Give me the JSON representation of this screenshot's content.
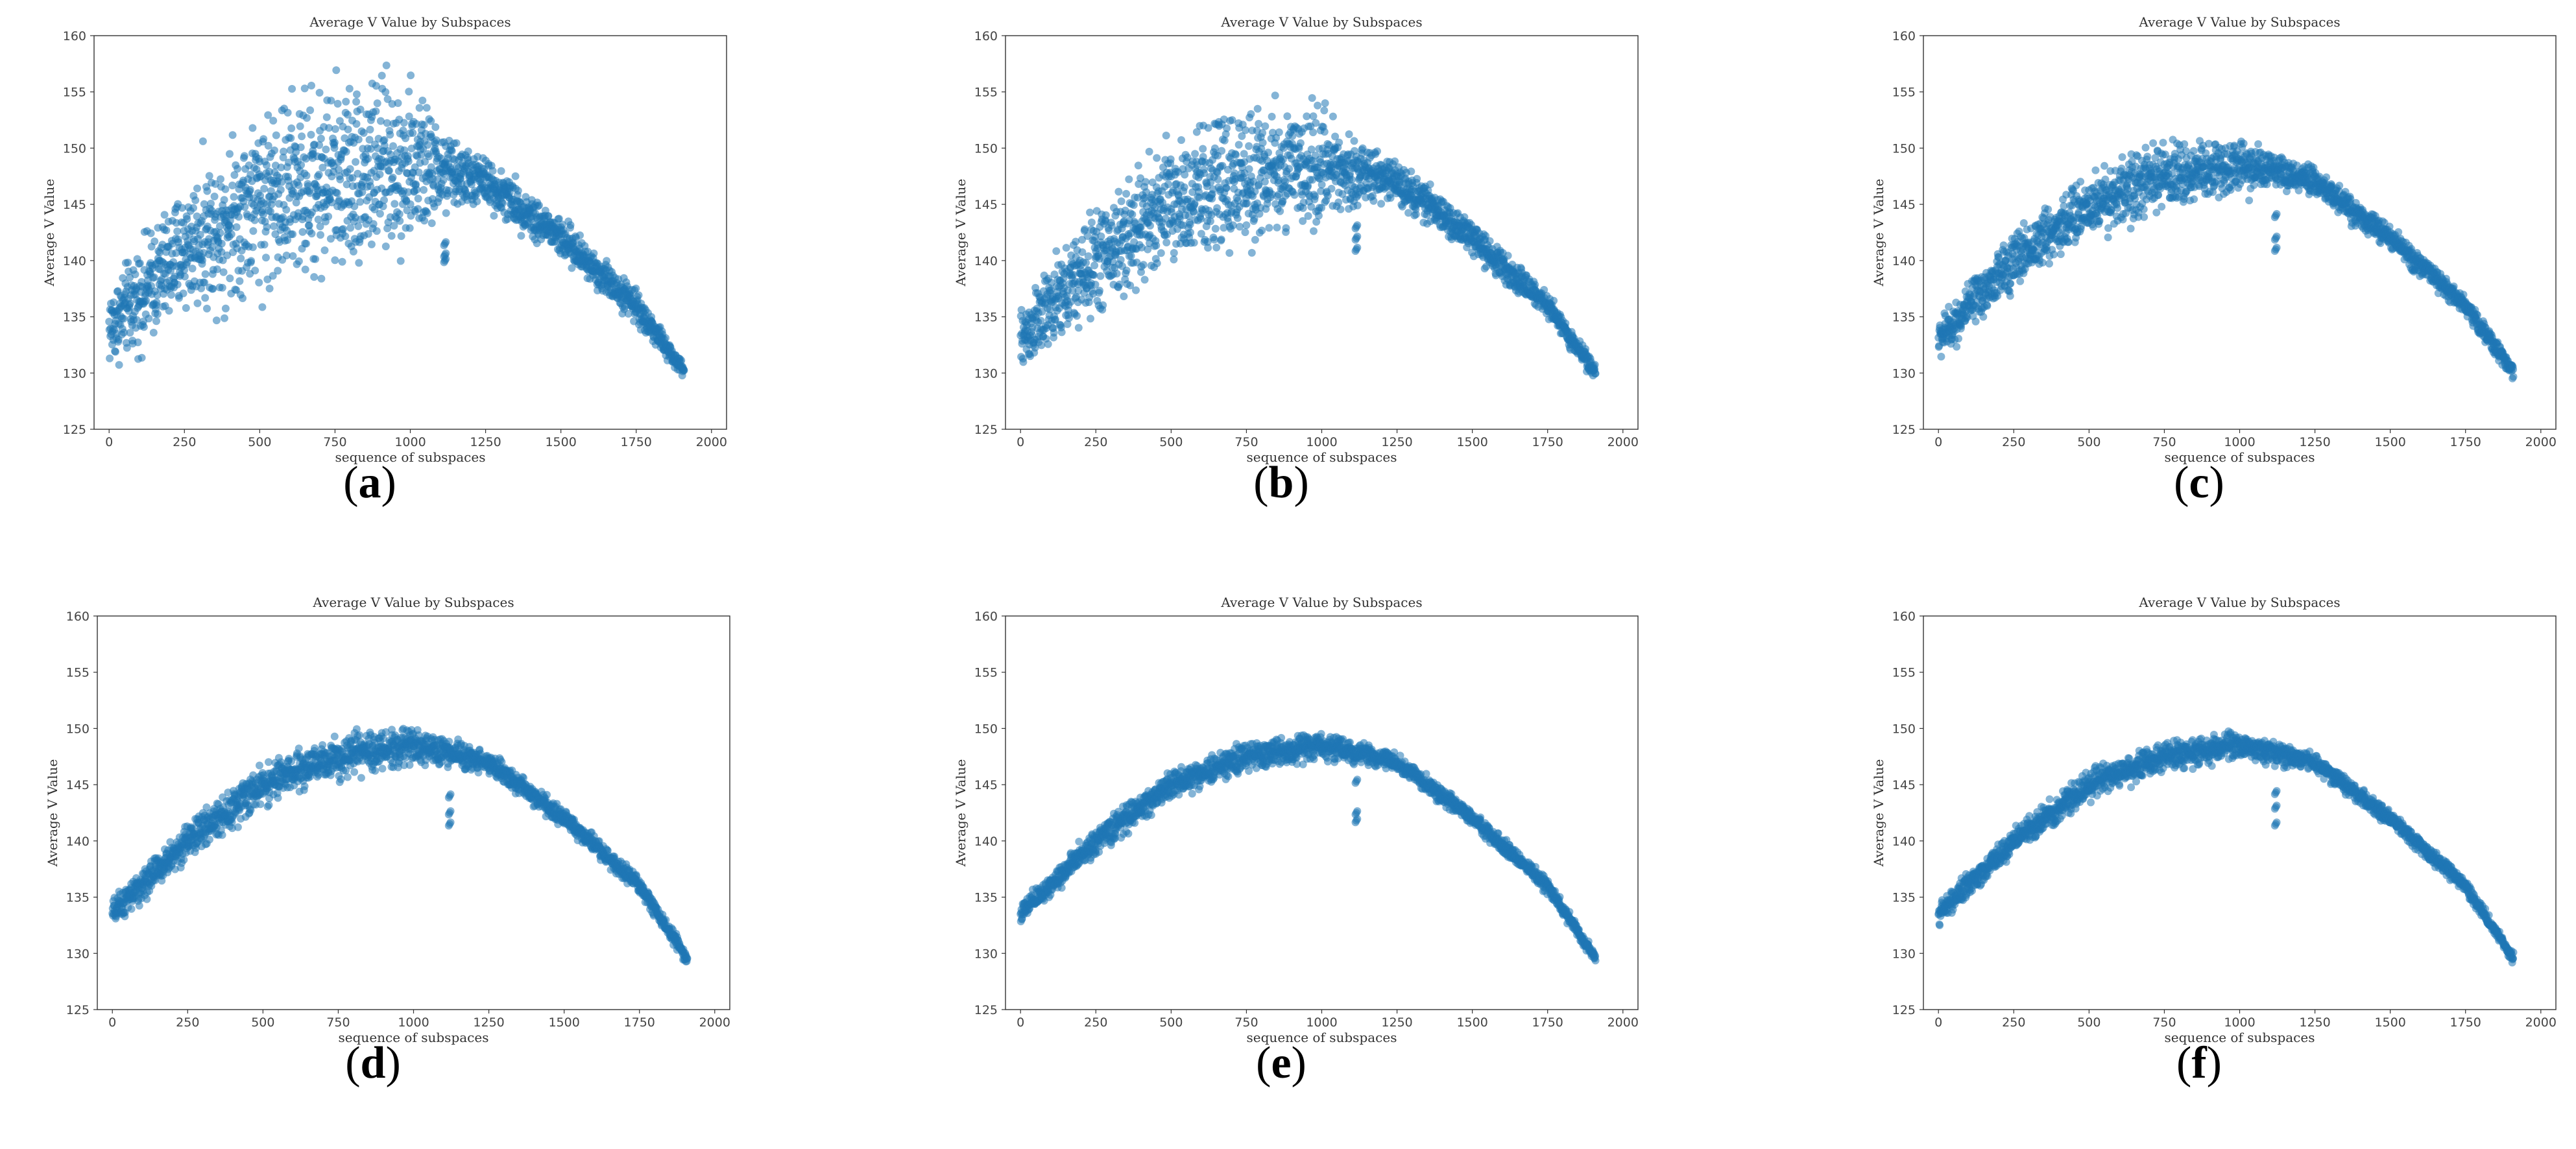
{
  "figure": {
    "panels": [
      {
        "label_open": "(",
        "letter": "a",
        "label_close": ")"
      },
      {
        "label_open": "(",
        "letter": "b",
        "label_close": ")"
      },
      {
        "label_open": "(",
        "letter": "c",
        "label_close": ")"
      },
      {
        "label_open": "(",
        "letter": "d",
        "label_close": ")"
      },
      {
        "label_open": "(",
        "letter": "e",
        "label_close": ")"
      },
      {
        "label_open": "(",
        "letter": "f",
        "label_close": ")"
      }
    ]
  },
  "chart_data": [
    {
      "type": "scatter",
      "title": "Average V Value by Subspaces",
      "xlabel": "sequence of subspaces",
      "ylabel": "Average V Value",
      "xlim": [
        0,
        2000
      ],
      "ylim": [
        125,
        160
      ],
      "x_ticks": [
        0,
        250,
        500,
        750,
        1000,
        1250,
        1500,
        1750,
        2000
      ],
      "y_ticks": [
        125,
        130,
        135,
        140,
        145,
        150,
        155,
        160
      ],
      "color": "#1f77b4",
      "n_points": 1900,
      "trend": {
        "x": [
          0,
          250,
          500,
          750,
          1000,
          1250,
          1500,
          1750,
          1910
        ],
        "y": [
          134,
          141,
          145.5,
          147.5,
          148.5,
          147,
          142,
          136,
          130
        ]
      },
      "spread": {
        "x": [
          0,
          250,
          500,
          750,
          1000,
          1150,
          1250,
          1500,
          1750,
          1910
        ],
        "y": [
          5,
          8,
          11,
          12,
          10,
          4,
          3,
          2.5,
          2,
          1
        ]
      },
      "outlier_cluster": {
        "x": 1115,
        "y": [
          140,
          140.5,
          141.5
        ]
      }
    },
    {
      "type": "scatter",
      "title": "Average V Value by Subspaces",
      "xlabel": "sequence of subspaces",
      "ylabel": "Average V Value",
      "xlim": [
        0,
        2000
      ],
      "ylim": [
        125,
        160
      ],
      "x_ticks": [
        0,
        250,
        500,
        750,
        1000,
        1250,
        1500,
        1750,
        2000
      ],
      "y_ticks": [
        125,
        130,
        135,
        140,
        145,
        150,
        155,
        160
      ],
      "color": "#1f77b4",
      "n_points": 1900,
      "trend": {
        "x": [
          0,
          250,
          500,
          750,
          1000,
          1250,
          1500,
          1750,
          1910
        ],
        "y": [
          133,
          140,
          145,
          147.5,
          148.5,
          147,
          142,
          136,
          130
        ]
      },
      "spread": {
        "x": [
          0,
          250,
          500,
          750,
          1000,
          1150,
          1250,
          1500,
          1750,
          1910
        ],
        "y": [
          4,
          6.5,
          8,
          8.5,
          7,
          3,
          2.5,
          2,
          1.5,
          1
        ]
      },
      "outlier_cluster": {
        "x": 1115,
        "y": [
          141,
          142,
          143
        ]
      }
    },
    {
      "type": "scatter",
      "title": "Average V Value by Subspaces",
      "xlabel": "sequence of subspaces",
      "ylabel": "Average V Value",
      "xlim": [
        0,
        2000
      ],
      "ylim": [
        125,
        160
      ],
      "x_ticks": [
        0,
        250,
        500,
        750,
        1000,
        1250,
        1500,
        1750,
        2000
      ],
      "y_ticks": [
        125,
        130,
        135,
        140,
        145,
        150,
        155,
        160
      ],
      "color": "#1f77b4",
      "n_points": 1900,
      "trend": {
        "x": [
          0,
          250,
          500,
          750,
          1000,
          1250,
          1500,
          1750,
          1910
        ],
        "y": [
          133,
          140,
          145,
          147.5,
          148.5,
          147,
          142,
          136,
          130
        ]
      },
      "spread": {
        "x": [
          0,
          250,
          500,
          750,
          1000,
          1150,
          1250,
          1500,
          1750,
          1910
        ],
        "y": [
          2.5,
          3.5,
          4,
          4,
          3.5,
          2,
          1.8,
          1.5,
          1.2,
          1
        ]
      },
      "outlier_cluster": {
        "x": 1120,
        "y": [
          141,
          142,
          144
        ]
      }
    },
    {
      "type": "scatter",
      "title": "Average V Value by Subspaces",
      "xlabel": "sequence of subspaces",
      "ylabel": "Average V Value",
      "xlim": [
        0,
        2000
      ],
      "ylim": [
        125,
        160
      ],
      "x_ticks": [
        0,
        250,
        500,
        750,
        1000,
        1250,
        1500,
        1750,
        2000
      ],
      "y_ticks": [
        125,
        130,
        135,
        140,
        145,
        150,
        155,
        160
      ],
      "color": "#1f77b4",
      "n_points": 1900,
      "trend": {
        "x": [
          0,
          250,
          500,
          750,
          1000,
          1250,
          1500,
          1750,
          1910
        ],
        "y": [
          133.5,
          140,
          145,
          147.5,
          148.5,
          147,
          142,
          136,
          129.5
        ]
      },
      "spread": {
        "x": [
          0,
          250,
          500,
          750,
          1000,
          1150,
          1250,
          1500,
          1750,
          1910
        ],
        "y": [
          1.8,
          2.2,
          2.4,
          2.4,
          2.2,
          1.6,
          1.4,
          1.2,
          1,
          0.8
        ]
      },
      "outlier_cluster": {
        "x": 1120,
        "y": [
          141.5,
          142.5,
          144
        ]
      }
    },
    {
      "type": "scatter",
      "title": "Average V Value by Subspaces",
      "xlabel": "sequence of subspaces",
      "ylabel": "Average V Value",
      "xlim": [
        0,
        2000
      ],
      "ylim": [
        125,
        160
      ],
      "x_ticks": [
        0,
        250,
        500,
        750,
        1000,
        1250,
        1500,
        1750,
        2000
      ],
      "y_ticks": [
        125,
        130,
        135,
        140,
        145,
        150,
        155,
        160
      ],
      "color": "#1f77b4",
      "n_points": 1900,
      "trend": {
        "x": [
          0,
          250,
          500,
          750,
          1000,
          1250,
          1500,
          1750,
          1910
        ],
        "y": [
          133.5,
          140,
          145,
          147.5,
          148.5,
          147,
          142,
          136,
          129.5
        ]
      },
      "spread": {
        "x": [
          0,
          250,
          500,
          750,
          1000,
          1150,
          1250,
          1500,
          1750,
          1910
        ],
        "y": [
          1.3,
          1.6,
          1.8,
          1.8,
          1.6,
          1.3,
          1.1,
          1,
          0.9,
          0.7
        ]
      },
      "outlier_cluster": {
        "x": 1115,
        "y": [
          141.8,
          142.5,
          145.3
        ]
      }
    },
    {
      "type": "scatter",
      "title": "Average V Value by Subspaces",
      "xlabel": "sequence of subspaces",
      "ylabel": "Average V Value",
      "xlim": [
        0,
        2000
      ],
      "ylim": [
        125,
        160
      ],
      "x_ticks": [
        0,
        250,
        500,
        750,
        1000,
        1250,
        1500,
        1750,
        2000
      ],
      "y_ticks": [
        125,
        130,
        135,
        140,
        145,
        150,
        155,
        160
      ],
      "color": "#1f77b4",
      "n_points": 1900,
      "trend": {
        "x": [
          0,
          250,
          500,
          750,
          1000,
          1250,
          1500,
          1750,
          1910
        ],
        "y": [
          133.5,
          140,
          145,
          147.5,
          148.5,
          147,
          142,
          136,
          129.5
        ]
      },
      "spread": {
        "x": [
          0,
          250,
          500,
          750,
          1000,
          1150,
          1250,
          1500,
          1750,
          1910
        ],
        "y": [
          1.3,
          1.6,
          1.8,
          1.8,
          1.6,
          1.3,
          1.1,
          1,
          0.9,
          0.7
        ]
      },
      "outlier_cluster": {
        "x": 1120,
        "y": [
          141.5,
          143,
          144.3
        ]
      }
    }
  ]
}
